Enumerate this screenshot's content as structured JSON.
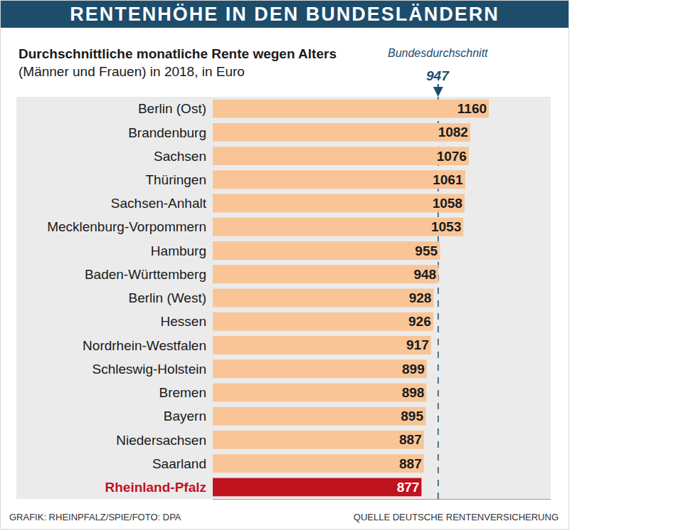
{
  "chart_data": {
    "type": "bar",
    "orientation": "horizontal",
    "title": "RENTENHÖHE IN DEN BUNDESLÄNDERN",
    "subtitle": "Durchschnittliche monatliche Rente wegen Alters (Männer und Frauen) in 2018, in Euro",
    "credit": "GRAFIK: RHEINPFALZ/SPIE/FOTO: DPA",
    "source": "QUELLE DEUTSCHE RENTENVERSICHERUNG",
    "average": {
      "label": "Bundesdurchschnitt",
      "value": 947
    },
    "categories": [
      "Berlin (Ost)",
      "Brandenburg",
      "Sachsen",
      "Thüringen",
      "Sachsen-Anhalt",
      "Mecklenburg-Vorpommern",
      "Hamburg",
      "Baden-Württemberg",
      "Berlin (West)",
      "Hessen",
      "Nordrhein-Westfalen",
      "Schleswig-Holstein",
      "Bremen",
      "Bayern",
      "Niedersachsen",
      "Saarland",
      "Rheinland-Pfalz"
    ],
    "values": [
      1160,
      1082,
      1076,
      1061,
      1058,
      1053,
      955,
      948,
      928,
      926,
      917,
      899,
      898,
      895,
      887,
      887,
      877
    ],
    "colors": [
      "#f9c597",
      "#f9c597",
      "#f9c597",
      "#f9c597",
      "#f9c597",
      "#f9c597",
      "#f9c597",
      "#f9c597",
      "#f9c597",
      "#f9c597",
      "#f9c597",
      "#f9c597",
      "#f9c597",
      "#f9c597",
      "#f9c597",
      "#f9c597",
      "#c1121f"
    ],
    "xlim": [
      0,
      1420
    ],
    "xticks": [],
    "grid": false,
    "data_labels": true,
    "tick_labels": "y"
  }
}
